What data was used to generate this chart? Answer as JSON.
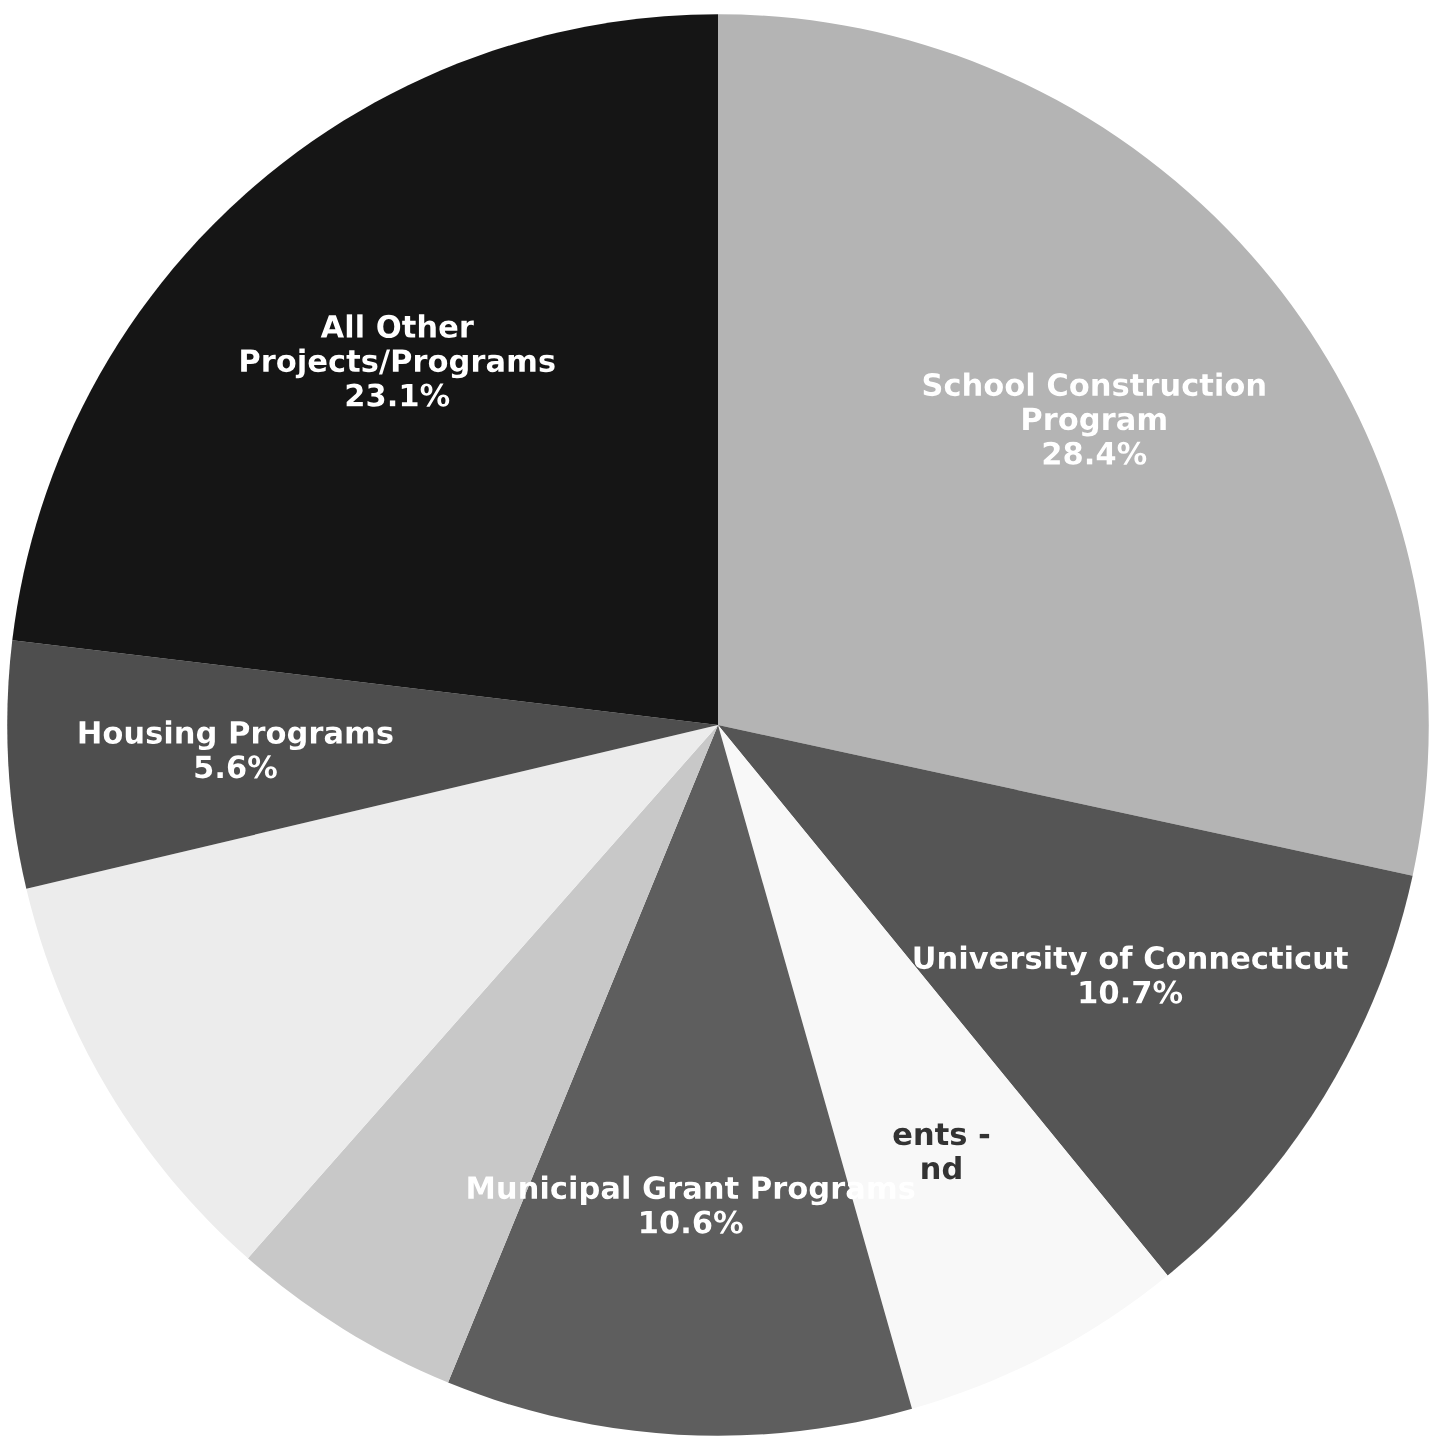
{
  "chart_data": {
    "type": "pie",
    "categories": [
      "School Construction\nProgram",
      "University of Connecticut",
      "ents -\nnd",
      "Municipal Grant Programs",
      null,
      null,
      "Housing Programs",
      "All Other\nProjects/Programs"
    ],
    "values": [
      28.4,
      10.7,
      6.5,
      10.6,
      5.3,
      9.8,
      5.6,
      23.1
    ],
    "value_labels": [
      "28.4%",
      "10.7%",
      null,
      "10.6%",
      null,
      null,
      "5.6%",
      "23.1%"
    ],
    "colors": [
      "#b4b4b4",
      "#555555",
      "#f8f8f8",
      "#5e5e5e",
      "#c8c8c8",
      "#ececec",
      "#4e4e4e",
      "#151515"
    ]
  }
}
